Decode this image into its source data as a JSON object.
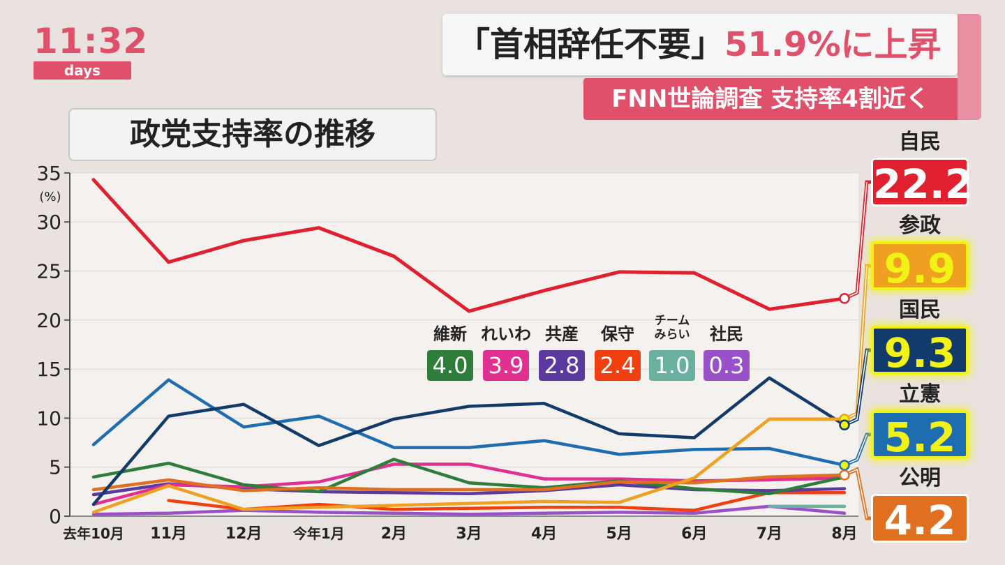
{
  "header": {
    "clock": "11:32",
    "show": "days",
    "headline_part1": "「首相辞任不要」",
    "headline_part2": "51.9%に上昇",
    "subheadline": "FNN世論調査 支持率4割近く"
  },
  "colors": {
    "accent": "#e0506a",
    "jimin": "#e0202e",
    "sansei": "#f0a020",
    "kokumin": "#123a6a",
    "rikken": "#1e6db0",
    "komei": "#e07020",
    "ishin": "#2e7d3a",
    "reiwa": "#e03090",
    "kyosan": "#5a3aa0",
    "hoshu": "#f04010",
    "mirai": "#6ab0a0",
    "shamin": "#9a50c8"
  },
  "chart_data": {
    "type": "line",
    "title": "政党支持率の推移",
    "ylabel": "(%)",
    "ylim": [
      0,
      35
    ],
    "yticks": [
      0,
      5,
      10,
      15,
      20,
      25,
      30,
      35
    ],
    "categories": [
      "去年10月",
      "11月",
      "12月",
      "今年1月",
      "2月",
      "3月",
      "4月",
      "5月",
      "6月",
      "7月",
      "8月"
    ],
    "series": [
      {
        "name": "自民",
        "color": "#e0202e",
        "values": [
          34.3,
          25.9,
          28.1,
          29.4,
          26.5,
          20.9,
          23.0,
          24.9,
          24.8,
          21.1,
          22.2
        ]
      },
      {
        "name": "参政",
        "color": "#f0a020",
        "values": [
          0.4,
          3.1,
          0.7,
          0.9,
          1.1,
          1.3,
          1.5,
          1.4,
          3.9,
          9.9,
          9.9
        ]
      },
      {
        "name": "国民",
        "color": "#123a6a",
        "values": [
          1.2,
          10.2,
          11.4,
          7.2,
          9.9,
          11.2,
          11.5,
          8.4,
          8.0,
          14.1,
          9.3
        ]
      },
      {
        "name": "立憲",
        "color": "#1e6db0",
        "values": [
          7.3,
          13.9,
          9.1,
          10.2,
          7.0,
          7.0,
          7.7,
          6.3,
          6.8,
          6.9,
          5.2
        ]
      },
      {
        "name": "公明",
        "color": "#e07020",
        "values": [
          2.7,
          3.7,
          2.6,
          2.9,
          2.7,
          2.7,
          2.7,
          3.5,
          3.4,
          4.0,
          4.2
        ]
      },
      {
        "name": "維新",
        "color": "#2e7d3a",
        "values": [
          4.0,
          5.4,
          3.2,
          2.5,
          5.8,
          3.4,
          2.9,
          3.6,
          2.8,
          2.3,
          4.0
        ]
      },
      {
        "name": "れいわ",
        "color": "#e03090",
        "values": [
          1.2,
          3.2,
          3.0,
          3.5,
          5.3,
          5.3,
          3.8,
          3.8,
          3.6,
          3.7,
          3.9
        ]
      },
      {
        "name": "共産",
        "color": "#5a3aa0",
        "values": [
          2.2,
          3.3,
          2.8,
          2.5,
          2.4,
          2.3,
          2.6,
          3.2,
          2.7,
          2.6,
          2.8
        ]
      },
      {
        "name": "保守",
        "color": "#f04010",
        "values": [
          null,
          1.6,
          0.7,
          1.2,
          0.7,
          0.8,
          0.9,
          0.9,
          0.6,
          2.4,
          2.4
        ]
      },
      {
        "name": "チームみらい",
        "color": "#6ab0a0",
        "values": [
          null,
          null,
          null,
          null,
          null,
          null,
          null,
          null,
          null,
          1.0,
          1.0
        ]
      },
      {
        "name": "社民",
        "color": "#9a50c8",
        "values": [
          0.2,
          0.3,
          0.6,
          0.4,
          0.3,
          0.2,
          0.3,
          0.4,
          0.3,
          1.0,
          0.3
        ]
      }
    ],
    "callouts_large": [
      {
        "name": "自民",
        "value": "22.2",
        "bg": "#e0202e",
        "fg": "#ffffff",
        "glow": false
      },
      {
        "name": "参政",
        "value": "9.9",
        "bg": "#f0a020",
        "fg": "#f2f214",
        "glow": true
      },
      {
        "name": "国民",
        "value": "9.3",
        "bg": "#123a6a",
        "fg": "#f2f214",
        "glow": true
      },
      {
        "name": "立憲",
        "value": "5.2",
        "bg": "#1e6db0",
        "fg": "#f2f214",
        "glow": true
      },
      {
        "name": "公明",
        "value": "4.2",
        "bg": "#e07020",
        "fg": "#ffffff",
        "glow": false
      }
    ],
    "callouts_small": [
      {
        "name": "維新",
        "value": "4.0",
        "bg": "#2e7d3a"
      },
      {
        "name": "れいわ",
        "value": "3.9",
        "bg": "#e03090"
      },
      {
        "name": "共産",
        "value": "2.8",
        "bg": "#5a3aa0"
      },
      {
        "name": "保守",
        "value": "2.4",
        "bg": "#f04010"
      },
      {
        "name": "チーム\nみらい",
        "value": "1.0",
        "bg": "#6ab0a0"
      },
      {
        "name": "社民",
        "value": "0.3",
        "bg": "#9a50c8"
      }
    ]
  }
}
